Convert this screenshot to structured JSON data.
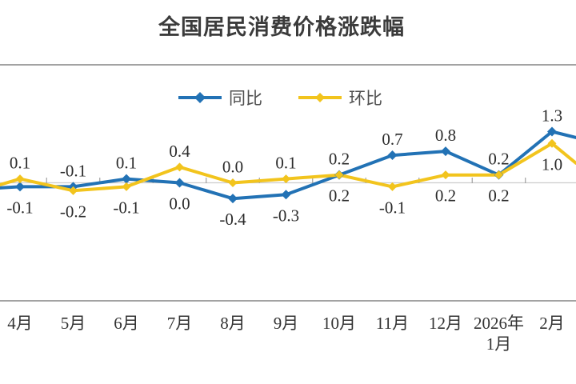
{
  "title": "全国居民消费价格涨跌幅",
  "legend": [
    {
      "label": "同比",
      "color": "#2272b5"
    },
    {
      "label": "环比",
      "color": "#f2c41d"
    }
  ],
  "chart_data": {
    "type": "line",
    "title": "全国居民消费价格涨跌幅",
    "categories": [
      "4月",
      "5月",
      "6月",
      "7月",
      "8月",
      "9月",
      "10月",
      "11月",
      "12月",
      "2026年\n1月",
      "2月"
    ],
    "series": [
      {
        "id": "yoy",
        "name": "同比",
        "color": "#2272b5",
        "values": [
          -0.1,
          -0.1,
          0.1,
          0.0,
          -0.4,
          -0.3,
          0.2,
          0.7,
          0.8,
          0.2,
          1.3
        ]
      },
      {
        "id": "mom",
        "name": "环比",
        "color": "#f2c41d",
        "values": [
          0.1,
          -0.2,
          -0.1,
          0.4,
          0.0,
          0.1,
          0.2,
          -0.1,
          0.2,
          0.2,
          1.0
        ]
      }
    ],
    "xlabel": "",
    "ylabel": "",
    "ylim": [
      -3,
      3
    ],
    "grid": false,
    "legend_position": "top",
    "data_labels": true,
    "left_edge_values": [
      -0.13,
      -0.05
    ],
    "right_edge_values": [
      1.15,
      0.5
    ]
  },
  "colors": {
    "background": "#ffffff",
    "axis_line": "#a3a3a3",
    "zero_line": "#cccccc",
    "tick": "#9f9f9f",
    "title_text": "#3b3b3b",
    "label_text": "#2b2b2b",
    "legend_text": "#4f4f4f"
  }
}
